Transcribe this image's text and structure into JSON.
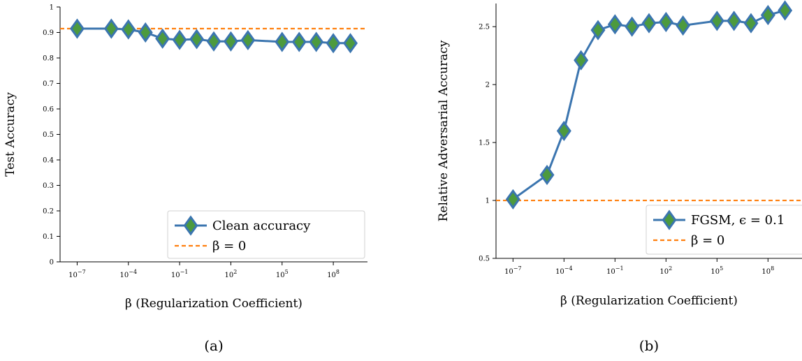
{
  "colors": {
    "series_line": "#3b75af",
    "marker_fill": "#4c9a3e",
    "baseline": "#ff7f0e",
    "axis": "#000000"
  },
  "chart_data": [
    {
      "type": "line",
      "caption": "(a)",
      "xlabel": "β (Regularization Coefficient)",
      "ylabel": "Test Accuracy",
      "x_scale": "log10",
      "xlim": [
        1e-08,
        10000000000.0
      ],
      "ylim": [
        0,
        1
      ],
      "xticks": [
        {
          "value": 1e-07,
          "base": "10",
          "exp": "−7"
        },
        {
          "value": 0.0001,
          "base": "10",
          "exp": "−4"
        },
        {
          "value": 0.1,
          "base": "10",
          "exp": "−1"
        },
        {
          "value": 100,
          "base": "10",
          "exp": "2"
        },
        {
          "value": 100000,
          "base": "10",
          "exp": "5"
        },
        {
          "value": 100000000,
          "base": "10",
          "exp": "8"
        }
      ],
      "yticks": [
        {
          "value": 0,
          "label": "0"
        },
        {
          "value": 0.1,
          "label": "0.1"
        },
        {
          "value": 0.2,
          "label": "0.2"
        },
        {
          "value": 0.3,
          "label": "0.3"
        },
        {
          "value": 0.4,
          "label": "0.4"
        },
        {
          "value": 0.5,
          "label": "0.5"
        },
        {
          "value": 0.6,
          "label": "0.6"
        },
        {
          "value": 0.7,
          "label": "0.7"
        },
        {
          "value": 0.8,
          "label": "0.8"
        },
        {
          "value": 0.9,
          "label": "0.9"
        },
        {
          "value": 1,
          "label": "1"
        }
      ],
      "series": [
        {
          "name": "Clean accuracy",
          "x": [
            1e-07,
            1e-05,
            0.0001,
            0.001,
            0.01,
            0.1,
            1,
            10,
            100,
            1000,
            100000,
            1000000,
            10000000,
            100000000,
            1000000000
          ],
          "y": [
            0.915,
            0.915,
            0.912,
            0.9,
            0.876,
            0.871,
            0.874,
            0.865,
            0.865,
            0.87,
            0.863,
            0.863,
            0.863,
            0.858,
            0.858
          ]
        }
      ],
      "baseline": {
        "name": "β = 0",
        "y": 0.915
      },
      "legend": "lower-right"
    },
    {
      "type": "line",
      "caption": "(b)",
      "xlabel": "β (Regularization Coefficient)",
      "ylabel": "Relative Adversarial Accuracy",
      "x_scale": "log10",
      "xlim": [
        1e-08,
        10000000000.0
      ],
      "ylim": [
        0.5,
        2.7
      ],
      "xticks": [
        {
          "value": 1e-07,
          "base": "10",
          "exp": "−7"
        },
        {
          "value": 0.0001,
          "base": "10",
          "exp": "−4"
        },
        {
          "value": 0.1,
          "base": "10",
          "exp": "−1"
        },
        {
          "value": 100,
          "base": "10",
          "exp": "2"
        },
        {
          "value": 100000,
          "base": "10",
          "exp": "5"
        },
        {
          "value": 100000000,
          "base": "10",
          "exp": "8"
        }
      ],
      "yticks": [
        {
          "value": 0.5,
          "label": "0.5"
        },
        {
          "value": 1,
          "label": "1"
        },
        {
          "value": 1.5,
          "label": "1.5"
        },
        {
          "value": 2,
          "label": "2"
        },
        {
          "value": 2.5,
          "label": "2.5"
        }
      ],
      "series": [
        {
          "name": "FGSM, ϵ = 0.1",
          "x": [
            1e-07,
            1e-05,
            0.0001,
            0.001,
            0.01,
            0.1,
            1,
            10,
            100,
            1000,
            100000,
            1000000,
            10000000,
            100000000,
            1000000000
          ],
          "y": [
            1.01,
            1.22,
            1.6,
            2.21,
            2.47,
            2.52,
            2.5,
            2.53,
            2.54,
            2.51,
            2.55,
            2.55,
            2.53,
            2.6,
            2.64
          ]
        }
      ],
      "baseline": {
        "name": "β = 0",
        "y": 1.0
      },
      "legend": "lower-right"
    }
  ]
}
